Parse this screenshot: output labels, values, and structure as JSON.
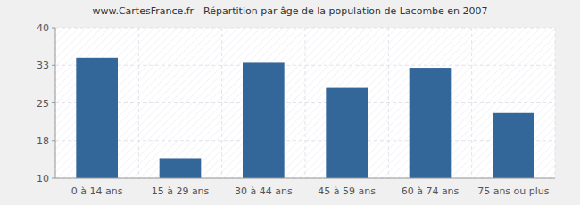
{
  "chart_data": {
    "type": "bar",
    "title": "www.CartesFrance.fr - Répartition par âge de la population de Lacombe en 2007",
    "categories": [
      "0 à 14 ans",
      "15 à 29 ans",
      "30 à 44 ans",
      "45 à 59 ans",
      "60 à 74 ans",
      "75 ans ou plus"
    ],
    "values": [
      34,
      14,
      33,
      28,
      32,
      23
    ],
    "color": "#336699",
    "ylim": [
      10,
      40
    ],
    "yticks": [
      10,
      {
        "value": 17.5,
        "label": "18"
      },
      25,
      {
        "value": 32.5,
        "label": "33"
      },
      40
    ],
    "grid": true
  }
}
